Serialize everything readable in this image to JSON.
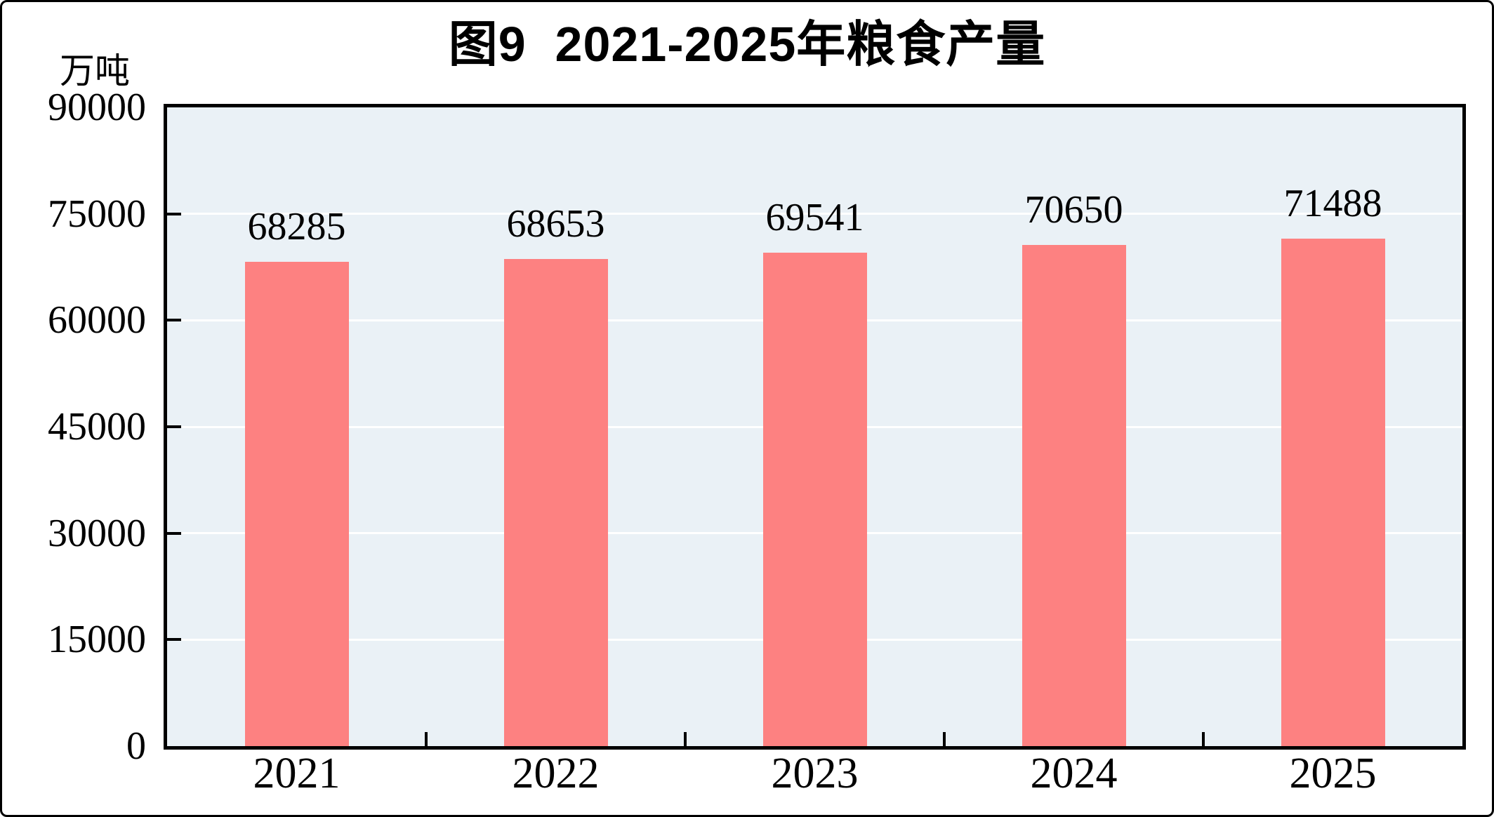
{
  "figure": {
    "title": "图9  2021-2025年粮食产量",
    "unit_label": "万吨"
  },
  "chart_data": {
    "type": "bar",
    "title": "图9  2021-2025年粮食产量",
    "ylabel": "万吨",
    "xlabel": "",
    "categories": [
      "2021",
      "2022",
      "2023",
      "2024",
      "2025"
    ],
    "values": [
      68285,
      68653,
      69541,
      70650,
      71488
    ],
    "data_labels": [
      "68285",
      "68653",
      "69541",
      "70650",
      "71488"
    ],
    "ylim": [
      0,
      90000
    ],
    "yticks": [
      0,
      15000,
      30000,
      45000,
      60000,
      75000,
      90000
    ],
    "ytick_labels": [
      "0",
      "15000",
      "30000",
      "45000",
      "60000",
      "75000",
      "90000"
    ],
    "grid": true,
    "legend_position": "none",
    "colors": {
      "bar": "#fd8181",
      "plot_background": "#eaf1f6",
      "gridline": "#ffffff",
      "text": "#000000",
      "axis": "#000000"
    }
  }
}
